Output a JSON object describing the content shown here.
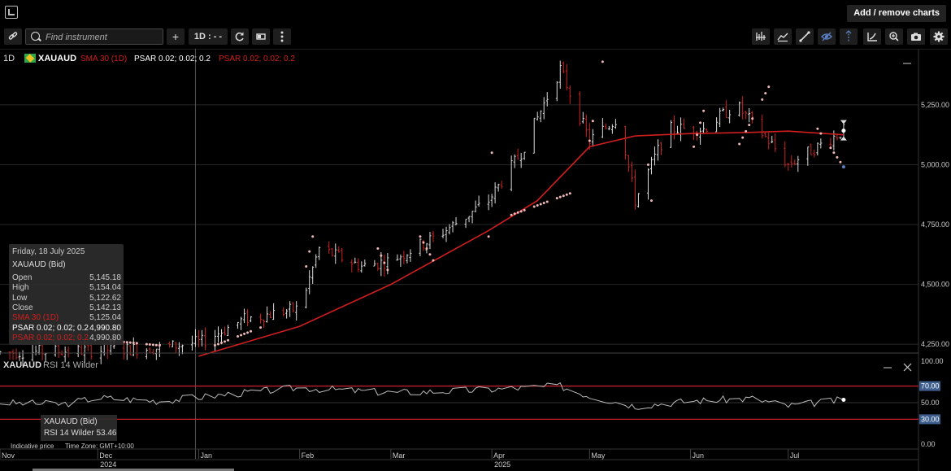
{
  "topbar": {
    "add_remove_label": "Add / remove charts"
  },
  "toolbar": {
    "search_placeholder": "Find instrument",
    "plus_label": "+",
    "timeframe_label": "1D : - -",
    "icons_left": [
      "link-icon",
      "search-icon",
      "plus-icon",
      "refresh-icon",
      "chart-type-icon",
      "more-vertical-icon"
    ],
    "icons_right": [
      "indicators-icon",
      "chart-style-icon",
      "draw-line-icon",
      "visibility-icon",
      "crosshair-icon",
      "trend-icon",
      "zoom-icon",
      "camera-icon",
      "settings-icon"
    ]
  },
  "legend": {
    "interval": "1D",
    "symbol": "XAUAUD",
    "sma": "SMA 30 (1D)",
    "psar1": "PSAR 0.02; 0.02; 0.2",
    "psar2": "PSAR 0.02; 0.02; 0.2",
    "rsi_title": "XAUAUD",
    "rsi_name": "RSI 14 Wilder"
  },
  "tooltip": {
    "date": "Friday, 18 July 2025",
    "symbol": "XAUAUD (Bid)",
    "rows": [
      {
        "label": "Open",
        "value": "5,145.18"
      },
      {
        "label": "High",
        "value": "5,154.04"
      },
      {
        "label": "Low",
        "value": "5,122.62"
      },
      {
        "label": "Close",
        "value": "5,142.13"
      },
      {
        "label": "SMA 30 (1D)",
        "value": "5,125.04"
      },
      {
        "label": "PSAR 0.02; 0.02; 0.2",
        "value": "4,990.80"
      },
      {
        "label": "PSAR 0.02; 0.02; 0.2",
        "value": "4,990.80"
      }
    ]
  },
  "rsi_tooltip": {
    "symbol": "XAUAUD (Bid)",
    "text": "RSI 14 Wilder 53.46"
  },
  "footer": {
    "indicative": "Indicative price",
    "timezone": "Time Zone: GMT+10:00"
  },
  "colors": {
    "up": "#dddddd",
    "down": "#cc2222",
    "sma": "#d01e1e",
    "psar": "#f0b8b8",
    "rsi": "#bbbbbb",
    "rsi_band": "#cc1f2f",
    "badge": "#3e5f8e"
  },
  "chart_data": [
    {
      "type": "candlestick",
      "title": "XAUAUD",
      "y_ticks": [
        "5,250.00",
        "5,000.00",
        "4,750.00",
        "4,500.00",
        "4,250.00"
      ],
      "y_tick_values": [
        5250,
        5000,
        4750,
        4500,
        4250
      ],
      "ylim": [
        4220,
        5450
      ],
      "x_ticks": [
        {
          "label": "Nov",
          "date": "2024-11-01"
        },
        {
          "label": "Dec",
          "date": "2024-12-01"
        },
        {
          "label": "Jan",
          "date": "2025-01-01"
        },
        {
          "label": "Feb",
          "date": "2025-02-01"
        },
        {
          "label": "Mar",
          "date": "2025-03-01"
        },
        {
          "label": "Apr",
          "date": "2025-04-01"
        },
        {
          "label": "May",
          "date": "2025-05-01"
        },
        {
          "label": "Jun",
          "date": "2025-06-01"
        },
        {
          "label": "Jul",
          "date": "2025-07-01"
        }
      ],
      "year_labels": [
        {
          "label": "2024",
          "date": "2024-12-01"
        },
        {
          "label": "2025",
          "date": "2025-04-01"
        }
      ],
      "x_range": [
        "2024-11-01",
        "2025-07-31"
      ],
      "crosshair_date": "2024-12-31",
      "close_path": [
        {
          "date": "2024-11-01",
          "value": 4215
        },
        {
          "date": "2024-12-01",
          "value": 4225
        },
        {
          "date": "2024-12-20",
          "value": 4235
        },
        {
          "date": "2025-01-02",
          "value": 4260
        },
        {
          "date": "2025-01-15",
          "value": 4355
        },
        {
          "date": "2025-02-01",
          "value": 4400
        },
        {
          "date": "2025-02-07",
          "value": 4650
        },
        {
          "date": "2025-02-20",
          "value": 4575
        },
        {
          "date": "2025-03-01",
          "value": 4600
        },
        {
          "date": "2025-03-15",
          "value": 4700
        },
        {
          "date": "2025-03-31",
          "value": 4850
        },
        {
          "date": "2025-04-10",
          "value": 5050
        },
        {
          "date": "2025-04-22",
          "value": 5400
        },
        {
          "date": "2025-05-01",
          "value": 5100
        },
        {
          "date": "2025-05-10",
          "value": 5200
        },
        {
          "date": "2025-05-15",
          "value": 4850
        },
        {
          "date": "2025-05-25",
          "value": 5150
        },
        {
          "date": "2025-06-05",
          "value": 5150
        },
        {
          "date": "2025-06-15",
          "value": 5250
        },
        {
          "date": "2025-06-25",
          "value": 5100
        },
        {
          "date": "2025-07-01",
          "value": 5000
        },
        {
          "date": "2025-07-18",
          "value": 5142
        }
      ],
      "sma_30": [
        {
          "date": "2025-01-01",
          "value": 4200
        },
        {
          "date": "2025-02-01",
          "value": 4325
        },
        {
          "date": "2025-03-01",
          "value": 4500
        },
        {
          "date": "2025-03-31",
          "value": 4725
        },
        {
          "date": "2025-04-15",
          "value": 4850
        },
        {
          "date": "2025-05-01",
          "value": 5075
        },
        {
          "date": "2025-05-15",
          "value": 5120
        },
        {
          "date": "2025-06-01",
          "value": 5130
        },
        {
          "date": "2025-06-20",
          "value": 5135
        },
        {
          "date": "2025-07-01",
          "value": 5140
        },
        {
          "date": "2025-07-18",
          "value": 5125
        }
      ],
      "psar": [
        {
          "date": "2024-12-05",
          "value": 4265
        },
        {
          "date": "2024-12-20",
          "value": 4245
        },
        {
          "date": "2025-01-05",
          "value": 4240
        },
        {
          "date": "2025-01-20",
          "value": 4320
        },
        {
          "date": "2025-02-01",
          "value": 4450
        },
        {
          "date": "2025-02-05",
          "value": 4700
        },
        {
          "date": "2025-02-25",
          "value": 4650
        },
        {
          "date": "2025-03-01",
          "value": 4530
        },
        {
          "date": "2025-03-10",
          "value": 4700
        },
        {
          "date": "2025-03-15",
          "value": 4575
        },
        {
          "date": "2025-03-31",
          "value": 4700
        },
        {
          "date": "2025-04-01",
          "value": 5050
        },
        {
          "date": "2025-04-05",
          "value": 4780
        },
        {
          "date": "2025-04-25",
          "value": 4880
        },
        {
          "date": "2025-05-01",
          "value": 5100
        },
        {
          "date": "2025-05-05",
          "value": 5430
        },
        {
          "date": "2025-05-18",
          "value": 5150
        },
        {
          "date": "2025-05-20",
          "value": 4850
        },
        {
          "date": "2025-06-01",
          "value": 5025
        },
        {
          "date": "2025-06-05",
          "value": 5225
        },
        {
          "date": "2025-06-15",
          "value": 5060
        },
        {
          "date": "2025-06-25",
          "value": 5325
        },
        {
          "date": "2025-07-10",
          "value": 5150
        },
        {
          "date": "2025-07-18",
          "value": 4990.8
        }
      ]
    },
    {
      "type": "line",
      "title": "RSI 14 Wilder",
      "y_ticks": [
        "100.00",
        "70.00",
        "50.00",
        "30.00",
        "0.00"
      ],
      "y_tick_values": [
        100,
        70,
        50,
        30,
        0
      ],
      "ylim": [
        0,
        100
      ],
      "bands": [
        70,
        30
      ],
      "series": [
        {
          "name": "RSI 14 Wilder",
          "points": [
            {
              "date": "2024-11-01",
              "value": 50
            },
            {
              "date": "2024-11-20",
              "value": 48
            },
            {
              "date": "2024-12-01",
              "value": 56
            },
            {
              "date": "2024-12-20",
              "value": 52
            },
            {
              "date": "2025-01-10",
              "value": 60
            },
            {
              "date": "2025-02-01",
              "value": 68
            },
            {
              "date": "2025-02-10",
              "value": 66
            },
            {
              "date": "2025-03-01",
              "value": 62
            },
            {
              "date": "2025-03-20",
              "value": 64
            },
            {
              "date": "2025-04-01",
              "value": 66
            },
            {
              "date": "2025-04-22",
              "value": 70
            },
            {
              "date": "2025-05-01",
              "value": 58
            },
            {
              "date": "2025-05-15",
              "value": 46
            },
            {
              "date": "2025-06-01",
              "value": 52
            },
            {
              "date": "2025-06-20",
              "value": 55
            },
            {
              "date": "2025-07-01",
              "value": 46
            },
            {
              "date": "2025-07-18",
              "value": 53.46
            }
          ]
        }
      ]
    }
  ]
}
